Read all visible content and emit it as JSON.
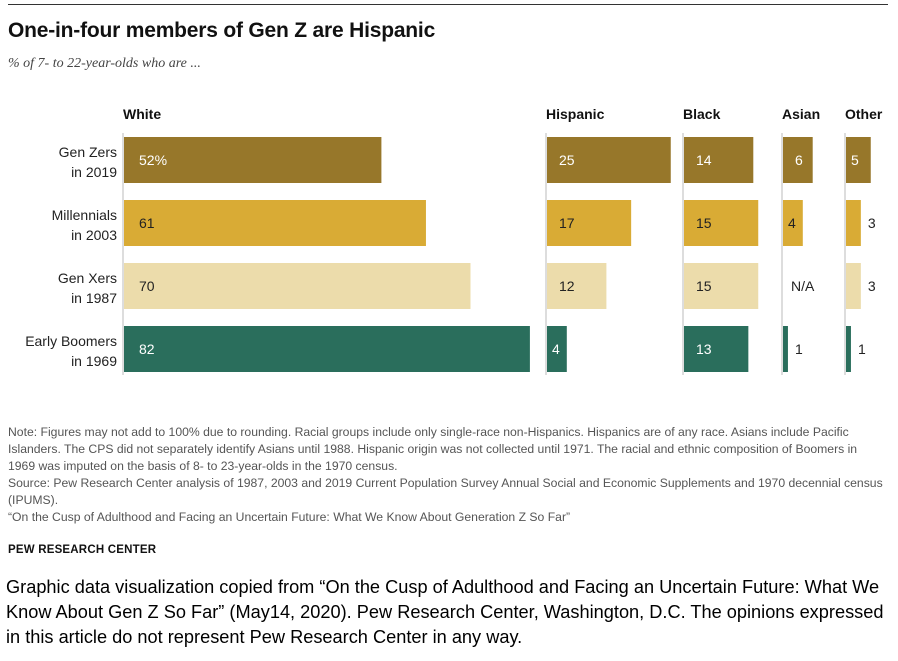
{
  "title": "One-in-four members of Gen Z are Hispanic",
  "subtitle": "% of 7- to 22-year-olds who are ...",
  "chart_data": {
    "type": "bar",
    "orientation": "horizontal",
    "categories": [
      [
        "Gen Zers",
        "in 2019"
      ],
      [
        "Millennials",
        "in 2003"
      ],
      [
        "Gen Xers",
        "in 1987"
      ],
      [
        "Early Boomers",
        "in 1969"
      ]
    ],
    "series": [
      {
        "name": "White",
        "values": [
          52,
          61,
          70,
          82
        ],
        "labels": [
          "52%",
          "61",
          "70",
          "82"
        ]
      },
      {
        "name": "Hispanic",
        "values": [
          25,
          17,
          12,
          4
        ],
        "labels": [
          "25",
          "17",
          "12",
          "4"
        ]
      },
      {
        "name": "Black",
        "values": [
          14,
          15,
          15,
          13
        ],
        "labels": [
          "14",
          "15",
          "15",
          "13"
        ]
      },
      {
        "name": "Asian",
        "values": [
          6,
          4,
          null,
          1
        ],
        "labels": [
          "6",
          "4",
          "N/A",
          "1"
        ]
      },
      {
        "name": "Other",
        "values": [
          5,
          3,
          3,
          1
        ],
        "labels": [
          "5",
          "3",
          "3",
          "1"
        ]
      }
    ],
    "row_colors": [
      "#97772a",
      "#d9ab35",
      "#ecdcab",
      "#2a6e5c"
    ],
    "label_colors": [
      "#ffffff",
      "#222222",
      "#222222",
      "#ffffff"
    ],
    "unit": "%"
  },
  "note": "Note: Figures may not add to 100% due to rounding. Racial groups include only single-race non-Hispanics. Hispanics are of any race. Asians include Pacific Islanders. The CPS did not separately identify Asians until 1988. Hispanic origin was not collected until 1971. The racial and ethnic composition of Boomers in 1969 was imputed on the basis of 8- to 23-year-olds in the 1970 census.",
  "source": "Source: Pew Research Center analysis of 1987, 2003 and 2019 Current Population Survey Annual Social and Economic Supplements and 1970 decennial census (IPUMS).",
  "report": "“On the Cusp of Adulthood and Facing an Uncertain Future: What We Know About Generation Z So Far”",
  "brand": "PEW RESEARCH CENTER",
  "caption": "Graphic data visualization copied from “On the Cusp of Adulthood and Facing an Uncertain Future: What We Know About Gen Z So Far” (May14, 2020). Pew Research Center, Washington, D.C. The opinions expressed in this article do not represent Pew Research Center in any way."
}
